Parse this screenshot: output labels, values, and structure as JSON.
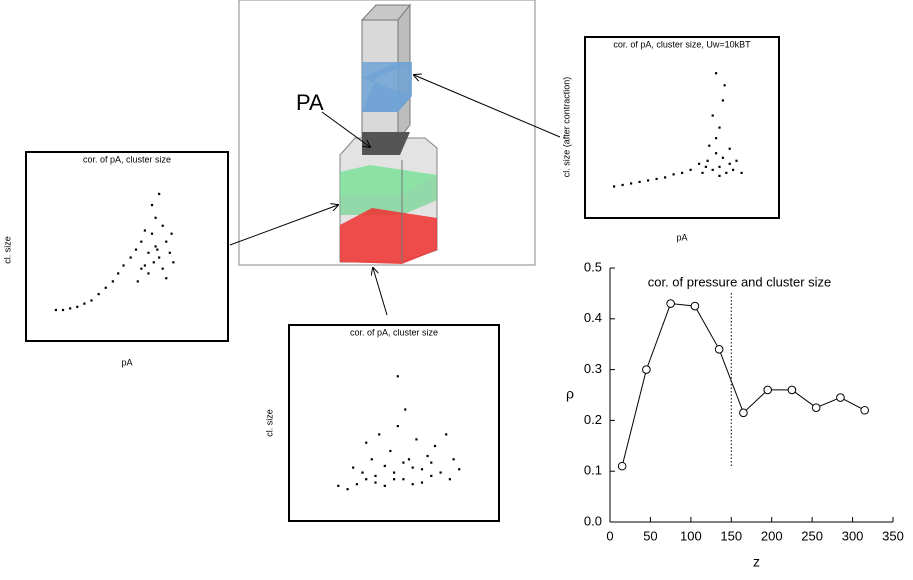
{
  "diagram": {
    "label": "PA"
  },
  "chart_data": [
    {
      "type": "scatter",
      "title": "cor. of pA, cluster size",
      "xlabel": "pA",
      "ylabel": "cl. size",
      "color": "#000000",
      "xlim": [
        0,
        100
      ],
      "ylim": [
        0,
        100
      ],
      "x": [
        10,
        14,
        18,
        22,
        26,
        30,
        34,
        38,
        42,
        45,
        48,
        52,
        55,
        58,
        60,
        62,
        64,
        65,
        66,
        68,
        70,
        72,
        74,
        76,
        62,
        58,
        66,
        70,
        64,
        68,
        56,
        75,
        60,
        72,
        67
      ],
      "y": [
        12,
        12,
        13,
        14,
        16,
        18,
        22,
        26,
        30,
        35,
        40,
        45,
        50,
        55,
        40,
        48,
        60,
        42,
        52,
        45,
        38,
        55,
        48,
        42,
        35,
        38,
        70,
        65,
        78,
        85,
        30,
        60,
        62,
        32,
        50
      ]
    },
    {
      "type": "scatter",
      "title": "cor. of pA, cluster size",
      "ylabel": "cl. size",
      "color": "#000000",
      "xlim": [
        0,
        100
      ],
      "ylim": [
        0,
        100
      ],
      "x": [
        20,
        25,
        30,
        35,
        40,
        45,
        50,
        55,
        60,
        65,
        70,
        75,
        80,
        85,
        28,
        38,
        48,
        58,
        68,
        42,
        52,
        62,
        72,
        56,
        78,
        35,
        45,
        55,
        65,
        50,
        60,
        40,
        70,
        33,
        82,
        52
      ],
      "y": [
        14,
        12,
        15,
        18,
        20,
        14,
        22,
        18,
        25,
        16,
        20,
        22,
        18,
        24,
        25,
        30,
        35,
        30,
        32,
        45,
        50,
        42,
        38,
        60,
        45,
        40,
        26,
        28,
        24,
        18,
        15,
        16,
        28,
        22,
        30,
        80
      ]
    },
    {
      "type": "scatter",
      "title": "cor. of pA, cluster size, Uw=10kBT",
      "xlabel": "pA",
      "ylabel": "cl. size (after contraction)",
      "color": "#000000",
      "xlim": [
        0,
        100
      ],
      "ylim": [
        0,
        100
      ],
      "x": [
        10,
        15,
        20,
        25,
        30,
        35,
        40,
        45,
        50,
        55,
        60,
        62,
        65,
        68,
        70,
        72,
        74,
        76,
        78,
        80,
        66,
        70,
        72,
        68,
        74,
        75,
        70,
        82,
        64,
        72,
        78,
        85
      ],
      "y": [
        13,
        14,
        15,
        16,
        17,
        18,
        19,
        21,
        22,
        24,
        28,
        22,
        30,
        24,
        35,
        26,
        32,
        22,
        28,
        24,
        40,
        45,
        52,
        60,
        70,
        80,
        88,
        30,
        26,
        20,
        38,
        22
      ]
    },
    {
      "type": "line",
      "title": "cor. of pressure and cluster size",
      "xlabel": "z",
      "ylabel": "ρ",
      "color": "#000000",
      "x": [
        15,
        45,
        75,
        105,
        135,
        165,
        195,
        225,
        255,
        285,
        315
      ],
      "values": [
        0.11,
        0.3,
        0.43,
        0.425,
        0.34,
        0.215,
        0.26,
        0.26,
        0.225,
        0.245,
        0.22
      ],
      "vline": 150,
      "xlim": [
        0,
        350
      ],
      "xticks": [
        0,
        50,
        100,
        150,
        200,
        250,
        300,
        350
      ],
      "ylim": [
        0,
        0.5
      ],
      "yticks": [
        {
          "value": 0,
          "label": "0.0"
        },
        0.1,
        0.2,
        0.3,
        0.4,
        0.5
      ]
    }
  ]
}
